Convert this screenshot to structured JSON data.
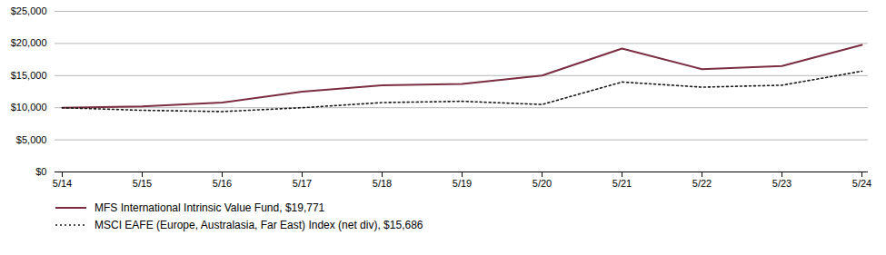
{
  "chart_data": {
    "type": "line",
    "categories": [
      "5/14",
      "5/15",
      "5/16",
      "5/17",
      "5/18",
      "5/19",
      "5/20",
      "5/21",
      "5/22",
      "5/23",
      "5/24"
    ],
    "series": [
      {
        "name": "MFS International Intrinsic Value Fund, $19,771",
        "color": "#7B2D42",
        "line_style": "solid",
        "values": [
          10000,
          10200,
          10800,
          12500,
          13500,
          13700,
          15000,
          19200,
          16000,
          16500,
          19771
        ]
      },
      {
        "name": "MSCI EAFE (Europe, Australasia, Far East) Index (net div), $15,686",
        "color": "#1a1a1a",
        "line_style": "dotted",
        "values": [
          10000,
          9600,
          9400,
          10000,
          10800,
          11000,
          10500,
          14000,
          13200,
          13500,
          15686
        ]
      }
    ],
    "ylim": [
      0,
      25000
    ],
    "yticks": [
      {
        "value": 0,
        "label": "$0"
      },
      {
        "value": 5000,
        "label": "$5,000"
      },
      {
        "value": 10000,
        "label": "$10,000"
      },
      {
        "value": 15000,
        "label": "$15,000"
      },
      {
        "value": 20000,
        "label": "$20,000"
      },
      {
        "value": 25000,
        "label": "$25,000"
      }
    ],
    "grid": true,
    "legend": "bottom"
  }
}
